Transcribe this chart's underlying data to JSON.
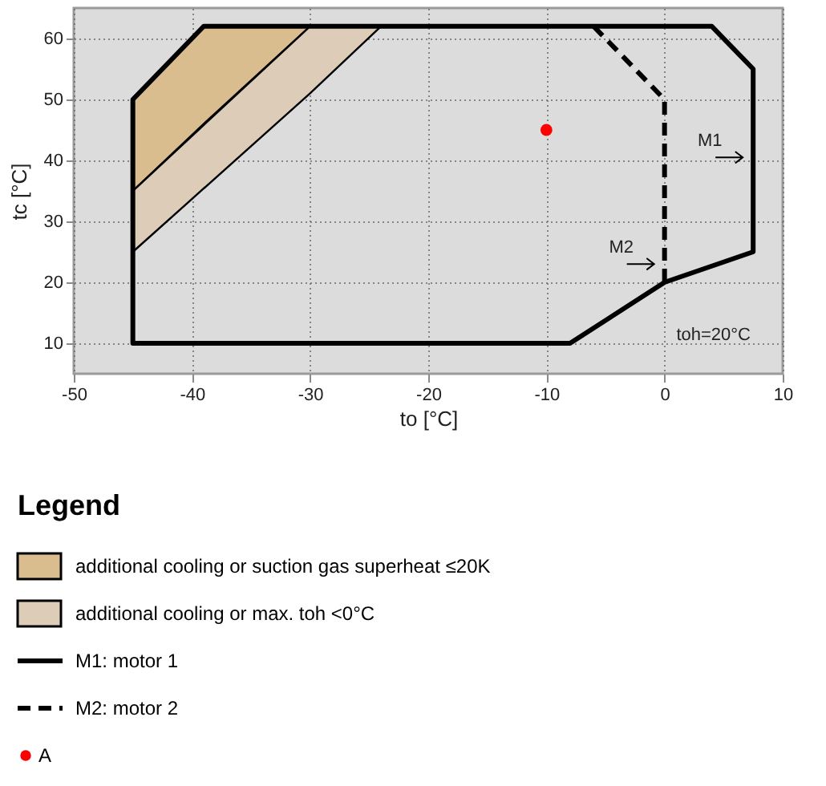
{
  "chart_data": {
    "type": "line",
    "xlabel": "to [°C]",
    "ylabel": "tc [°C]",
    "legend_title": "Legend",
    "xlim": [
      -50,
      10
    ],
    "ylim": [
      5,
      65
    ],
    "xticks": [
      -50,
      -40,
      -30,
      -20,
      -10,
      0,
      10
    ],
    "yticks": [
      10,
      20,
      30,
      40,
      50,
      60
    ],
    "grid": true,
    "legend": "bottom",
    "series": [
      {
        "name": "additional cooling or suction gas superheat ≤20K",
        "type": "area",
        "color": "#d9bd8f",
        "x": [
          -45,
          -39,
          -30
        ],
        "values": [
          null,
          null,
          null
        ],
        "upper": [
          50,
          62,
          62
        ],
        "lower": [
          35,
          46,
          62
        ]
      },
      {
        "name": "additional cooling or max. toh <0°C",
        "type": "area",
        "color": "#ddcdb8",
        "x": [
          -45,
          -30,
          -24
        ],
        "values": [
          null,
          null,
          null
        ],
        "upper": [
          35,
          62,
          62
        ],
        "lower": [
          25,
          51,
          62
        ]
      },
      {
        "name": "M1: motor 1",
        "color": "#000000",
        "line_style": "solid",
        "x": [
          -45,
          -45,
          -39,
          4,
          7.5,
          7.5,
          0,
          -8,
          -45,
          -45
        ],
        "values": [
          10,
          50,
          62,
          62,
          55,
          25,
          20,
          10,
          10,
          50
        ]
      },
      {
        "name": "M2: motor 2",
        "color": "#000000",
        "line_style": "dashed",
        "x": [
          -6,
          0,
          0
        ],
        "values": [
          62,
          50,
          20
        ]
      },
      {
        "name": "A",
        "type": "scatter",
        "color": "#ff0000",
        "marker": "circle",
        "x": [
          -10
        ],
        "values": [
          45
        ]
      }
    ],
    "annotations": [
      {
        "text": "M1",
        "x": 7.5,
        "y": 40.5
      },
      {
        "text": "M2",
        "x": 0,
        "y": 23
      },
      "toh=20°C"
    ]
  }
}
